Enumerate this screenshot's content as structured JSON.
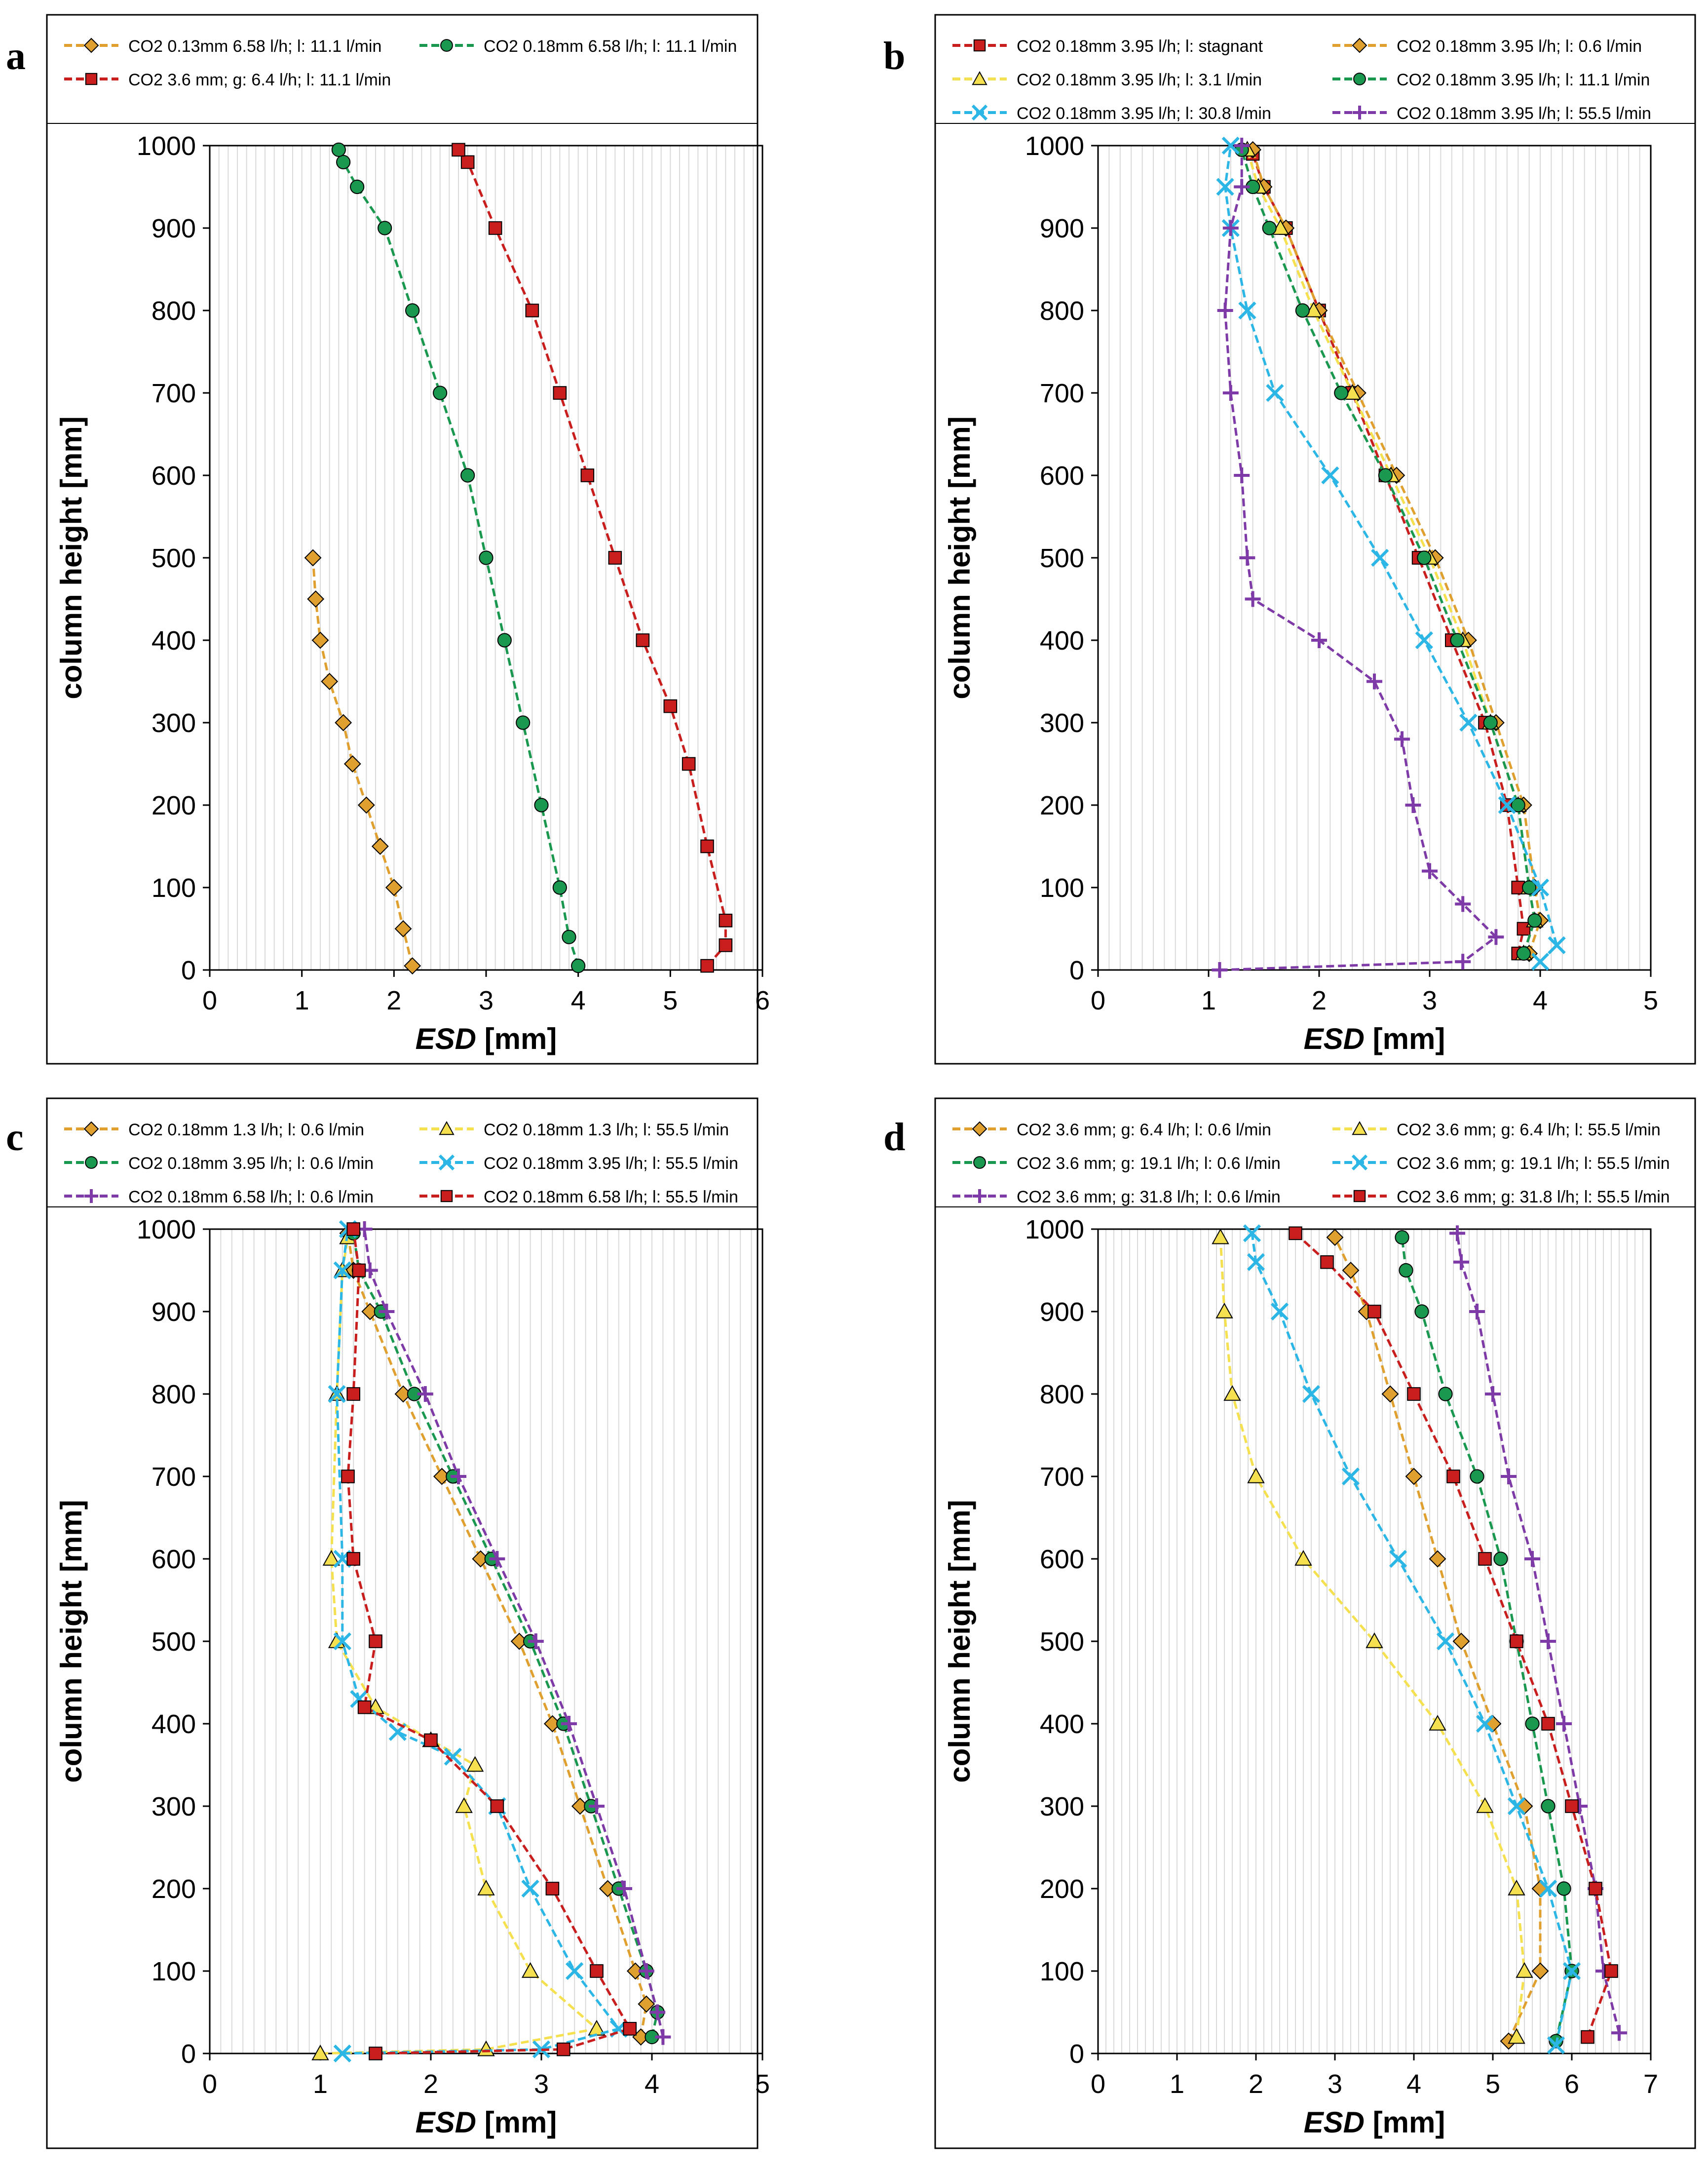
{
  "figure": {
    "description_free": true
  },
  "colors": {
    "orange": "#E0A030",
    "green": "#1A9850",
    "red": "#C81E1E",
    "yellow": "#F5E050",
    "cyan": "#2BB6E6",
    "purple": "#7E3AA6",
    "grid": "#d9d9d9"
  },
  "chart_data": [
    {
      "panel": "a",
      "type": "line",
      "xlabel_italic": "ESD",
      "xlabel_unit": "[mm]",
      "ylabel": "column height [mm]",
      "xlim": [
        0,
        6
      ],
      "ylim": [
        0,
        1000
      ],
      "xticks": [
        "0",
        "1",
        "2",
        "3",
        "4",
        "5",
        "6"
      ],
      "yticks": [
        "0",
        "100",
        "200",
        "300",
        "400",
        "500",
        "600",
        "700",
        "800",
        "900",
        "1000"
      ],
      "grid": "vertical-minor",
      "legend_columns": 2,
      "series": [
        {
          "name": "CO2 0.13mm 6.58 l/h; l: 11.1 l/min",
          "color": "orange",
          "marker": "diamond",
          "x": [
            2.2,
            2.1,
            2.0,
            1.85,
            1.7,
            1.55,
            1.45,
            1.3,
            1.2,
            1.15,
            1.12
          ],
          "y": [
            5,
            50,
            100,
            150,
            200,
            250,
            300,
            350,
            400,
            450,
            500
          ]
        },
        {
          "name": "CO2 0.18mm 6.58 l/h; l: 11.1 l/min",
          "color": "green",
          "marker": "circle",
          "x": [
            4.0,
            3.9,
            3.8,
            3.6,
            3.4,
            3.2,
            3.0,
            2.8,
            2.5,
            2.2,
            1.9,
            1.6,
            1.45,
            1.4
          ],
          "y": [
            5,
            40,
            100,
            200,
            300,
            400,
            500,
            600,
            700,
            800,
            900,
            950,
            980,
            995
          ]
        },
        {
          "name": "CO2 3.6 mm; g: 6.4 l/h; l: 11.1 l/min",
          "color": "red",
          "marker": "square",
          "x": [
            5.4,
            5.6,
            5.6,
            5.4,
            5.2,
            5.0,
            4.7,
            4.4,
            4.1,
            3.8,
            3.5,
            3.1,
            2.8,
            2.7
          ],
          "y": [
            5,
            30,
            60,
            150,
            250,
            320,
            400,
            500,
            600,
            700,
            800,
            900,
            980,
            995
          ]
        }
      ]
    },
    {
      "panel": "b",
      "type": "line",
      "xlabel_italic": "ESD",
      "xlabel_unit": "[mm]",
      "ylabel": "column height [mm]",
      "xlim": [
        0,
        5
      ],
      "ylim": [
        0,
        1000
      ],
      "xticks": [
        "0",
        "1",
        "2",
        "3",
        "4",
        "5"
      ],
      "yticks": [
        "0",
        "100",
        "200",
        "300",
        "400",
        "500",
        "600",
        "700",
        "800",
        "900",
        "1000"
      ],
      "grid": "vertical-minor",
      "legend_columns": 2,
      "series": [
        {
          "name": "CO2 0.18mm 3.95 l/h; l: stagnant",
          "color": "red",
          "marker": "square",
          "x": [
            3.8,
            3.85,
            3.8,
            3.7,
            3.5,
            3.2,
            2.9,
            2.6,
            2.3,
            2.0,
            1.7,
            1.5,
            1.4
          ],
          "y": [
            20,
            50,
            100,
            200,
            300,
            400,
            500,
            600,
            700,
            800,
            900,
            950,
            990
          ]
        },
        {
          "name": "CO2 0.18mm 3.95 l/h; l: 0.6 l/min",
          "color": "orange",
          "marker": "diamond",
          "x": [
            3.9,
            4.0,
            3.95,
            3.85,
            3.6,
            3.35,
            3.05,
            2.7,
            2.35,
            2.0,
            1.7,
            1.5,
            1.4
          ],
          "y": [
            20,
            60,
            100,
            200,
            300,
            400,
            500,
            600,
            700,
            800,
            900,
            950,
            995
          ]
        },
        {
          "name": "CO2 0.18mm 3.95 l/h; l: 3.1 l/min",
          "color": "yellow",
          "marker": "triangle",
          "x": [
            3.85,
            3.95,
            3.9,
            3.8,
            3.55,
            3.3,
            3.0,
            2.65,
            2.3,
            1.95,
            1.65,
            1.45,
            1.35
          ],
          "y": [
            20,
            60,
            100,
            200,
            300,
            400,
            500,
            600,
            700,
            800,
            900,
            950,
            995
          ]
        },
        {
          "name": "CO2 0.18mm 3.95 l/h; l: 11.1 l/min",
          "color": "green",
          "marker": "circle",
          "x": [
            3.85,
            3.95,
            3.9,
            3.8,
            3.55,
            3.25,
            2.95,
            2.6,
            2.2,
            1.85,
            1.55,
            1.4,
            1.3
          ],
          "y": [
            20,
            60,
            100,
            200,
            300,
            400,
            500,
            600,
            700,
            800,
            900,
            950,
            995
          ]
        },
        {
          "name": "CO2 0.18mm 3.95 l/h; l: 30.8 l/min",
          "color": "cyan",
          "marker": "x",
          "x": [
            4.0,
            4.15,
            4.0,
            3.7,
            3.35,
            2.95,
            2.55,
            2.1,
            1.6,
            1.35,
            1.2,
            1.15,
            1.2
          ],
          "y": [
            10,
            30,
            100,
            200,
            300,
            400,
            500,
            600,
            700,
            800,
            900,
            950,
            1000
          ]
        },
        {
          "name": "CO2 0.18mm 3.95 l/h; l: 55.5 l/min",
          "color": "purple",
          "marker": "plus",
          "x": [
            1.1,
            3.3,
            3.6,
            3.3,
            3.0,
            2.85,
            2.75,
            2.5,
            2.0,
            1.4,
            1.35,
            1.3,
            1.2,
            1.15,
            1.2,
            1.3,
            1.3
          ],
          "y": [
            0,
            10,
            40,
            80,
            120,
            200,
            280,
            350,
            400,
            450,
            500,
            600,
            700,
            800,
            900,
            950,
            1000
          ]
        }
      ]
    },
    {
      "panel": "c",
      "type": "line",
      "xlabel_italic": "ESD",
      "xlabel_unit": "[mm]",
      "ylabel": "column height [mm]",
      "xlim": [
        0,
        5
      ],
      "ylim": [
        0,
        1000
      ],
      "xticks": [
        "0",
        "1",
        "2",
        "3",
        "4",
        "5"
      ],
      "yticks": [
        "0",
        "100",
        "200",
        "300",
        "400",
        "500",
        "600",
        "700",
        "800",
        "900",
        "1000"
      ],
      "grid": "vertical-minor",
      "legend_columns": 2,
      "series": [
        {
          "name": "CO2 0.18mm 1.3 l/h; l: 0.6 l/min",
          "color": "orange",
          "marker": "diamond",
          "x": [
            3.9,
            3.95,
            3.85,
            3.6,
            3.35,
            3.1,
            2.8,
            2.45,
            2.1,
            1.75,
            1.45,
            1.3,
            1.25
          ],
          "y": [
            20,
            60,
            100,
            200,
            300,
            400,
            500,
            600,
            700,
            800,
            900,
            950,
            995
          ]
        },
        {
          "name": "CO2 0.18mm 1.3 l/h; l: 55.5 l/min",
          "color": "yellow",
          "marker": "triangle",
          "x": [
            1.0,
            2.5,
            3.5,
            2.9,
            2.5,
            2.3,
            2.4,
            2.0,
            1.5,
            1.15,
            1.1,
            1.15,
            1.2,
            1.25
          ],
          "y": [
            0,
            5,
            30,
            100,
            200,
            300,
            350,
            380,
            420,
            500,
            600,
            800,
            950,
            990
          ]
        },
        {
          "name": "CO2 0.18mm 3.95 l/h; l: 0.6 l/min",
          "color": "green",
          "marker": "circle",
          "x": [
            4.0,
            4.05,
            3.95,
            3.7,
            3.45,
            3.2,
            2.9,
            2.55,
            2.2,
            1.85,
            1.55,
            1.35,
            1.3
          ],
          "y": [
            20,
            50,
            100,
            200,
            300,
            400,
            500,
            600,
            700,
            800,
            900,
            950,
            995
          ]
        },
        {
          "name": "CO2 0.18mm 3.95 l/h; l: 55.5 l/min",
          "color": "cyan",
          "marker": "x",
          "x": [
            1.2,
            3.0,
            3.7,
            3.3,
            2.9,
            2.6,
            2.2,
            1.7,
            1.35,
            1.2,
            1.2,
            1.15,
            1.2,
            1.25
          ],
          "y": [
            0,
            5,
            30,
            100,
            200,
            300,
            360,
            390,
            430,
            500,
            600,
            800,
            950,
            1000
          ]
        },
        {
          "name": "CO2 0.18mm 6.58 l/h; l: 0.6 l/min",
          "color": "purple",
          "marker": "plus",
          "x": [
            4.1,
            4.05,
            3.95,
            3.75,
            3.5,
            3.25,
            2.95,
            2.6,
            2.25,
            1.95,
            1.6,
            1.45,
            1.4
          ],
          "y": [
            20,
            50,
            100,
            200,
            300,
            400,
            500,
            600,
            700,
            800,
            900,
            950,
            1000
          ]
        },
        {
          "name": "CO2 0.18mm 6.58 l/h; l: 55.5 l/min",
          "color": "red",
          "marker": "square",
          "x": [
            1.5,
            3.2,
            3.8,
            3.5,
            3.1,
            2.6,
            2.0,
            1.4,
            1.5,
            1.3,
            1.25,
            1.3,
            1.35,
            1.3
          ],
          "y": [
            0,
            5,
            30,
            100,
            200,
            300,
            380,
            420,
            500,
            600,
            700,
            800,
            950,
            1000
          ]
        }
      ]
    },
    {
      "panel": "d",
      "type": "line",
      "xlabel_italic": "ESD",
      "xlabel_unit": "[mm]",
      "ylabel": "column height [mm]",
      "xlim": [
        0,
        7
      ],
      "ylim": [
        0,
        1000
      ],
      "xticks": [
        "0",
        "1",
        "2",
        "3",
        "4",
        "5",
        "6",
        "7"
      ],
      "yticks": [
        "0",
        "100",
        "200",
        "300",
        "400",
        "500",
        "600",
        "700",
        "800",
        "900",
        "1000"
      ],
      "grid": "vertical-minor",
      "legend_columns": 2,
      "series": [
        {
          "name": "CO2 3.6 mm; g: 6.4 l/h; l: 0.6 l/min",
          "color": "orange",
          "marker": "diamond",
          "x": [
            5.2,
            5.6,
            5.6,
            5.4,
            5.0,
            4.6,
            4.3,
            4.0,
            3.7,
            3.4,
            3.2,
            3.0
          ],
          "y": [
            15,
            100,
            200,
            300,
            400,
            500,
            600,
            700,
            800,
            900,
            950,
            990
          ]
        },
        {
          "name": "CO2 3.6 mm; g: 6.4 l/h; l: 55.5 l/min",
          "color": "yellow",
          "marker": "triangle",
          "x": [
            5.3,
            5.4,
            5.3,
            4.9,
            4.3,
            3.5,
            2.6,
            2.0,
            1.7,
            1.6,
            1.55
          ],
          "y": [
            20,
            100,
            200,
            300,
            400,
            500,
            600,
            700,
            800,
            900,
            990
          ]
        },
        {
          "name": "CO2 3.6 mm; g: 19.1 l/h; l: 0.6 l/min",
          "color": "green",
          "marker": "circle",
          "x": [
            5.8,
            6.0,
            5.9,
            5.7,
            5.5,
            5.3,
            5.1,
            4.8,
            4.4,
            4.1,
            3.9,
            3.85
          ],
          "y": [
            15,
            100,
            200,
            300,
            400,
            500,
            600,
            700,
            800,
            900,
            950,
            990
          ]
        },
        {
          "name": "CO2 3.6 mm; g: 19.1 l/h; l: 55.5 l/min",
          "color": "cyan",
          "marker": "x",
          "x": [
            5.8,
            6.0,
            5.7,
            5.3,
            4.9,
            4.4,
            3.8,
            3.2,
            2.7,
            2.3,
            2.0,
            1.95
          ],
          "y": [
            10,
            100,
            200,
            300,
            400,
            500,
            600,
            700,
            800,
            900,
            960,
            995
          ]
        },
        {
          "name": "CO2 3.6 mm; g: 31.8 l/h; l: 0.6 l/min",
          "color": "purple",
          "marker": "plus",
          "x": [
            6.6,
            6.4,
            6.3,
            6.1,
            5.9,
            5.7,
            5.5,
            5.2,
            5.0,
            4.8,
            4.6,
            4.55
          ],
          "y": [
            25,
            100,
            200,
            300,
            400,
            500,
            600,
            700,
            800,
            900,
            960,
            995
          ]
        },
        {
          "name": "CO2 3.6 mm; g: 31.8 l/h; l: 55.5 l/min",
          "color": "red",
          "marker": "square",
          "x": [
            6.2,
            6.5,
            6.3,
            6.0,
            5.7,
            5.3,
            4.9,
            4.5,
            4.0,
            3.5,
            2.9,
            2.5
          ],
          "y": [
            20,
            100,
            200,
            300,
            400,
            500,
            600,
            700,
            800,
            900,
            960,
            995
          ]
        }
      ]
    }
  ]
}
